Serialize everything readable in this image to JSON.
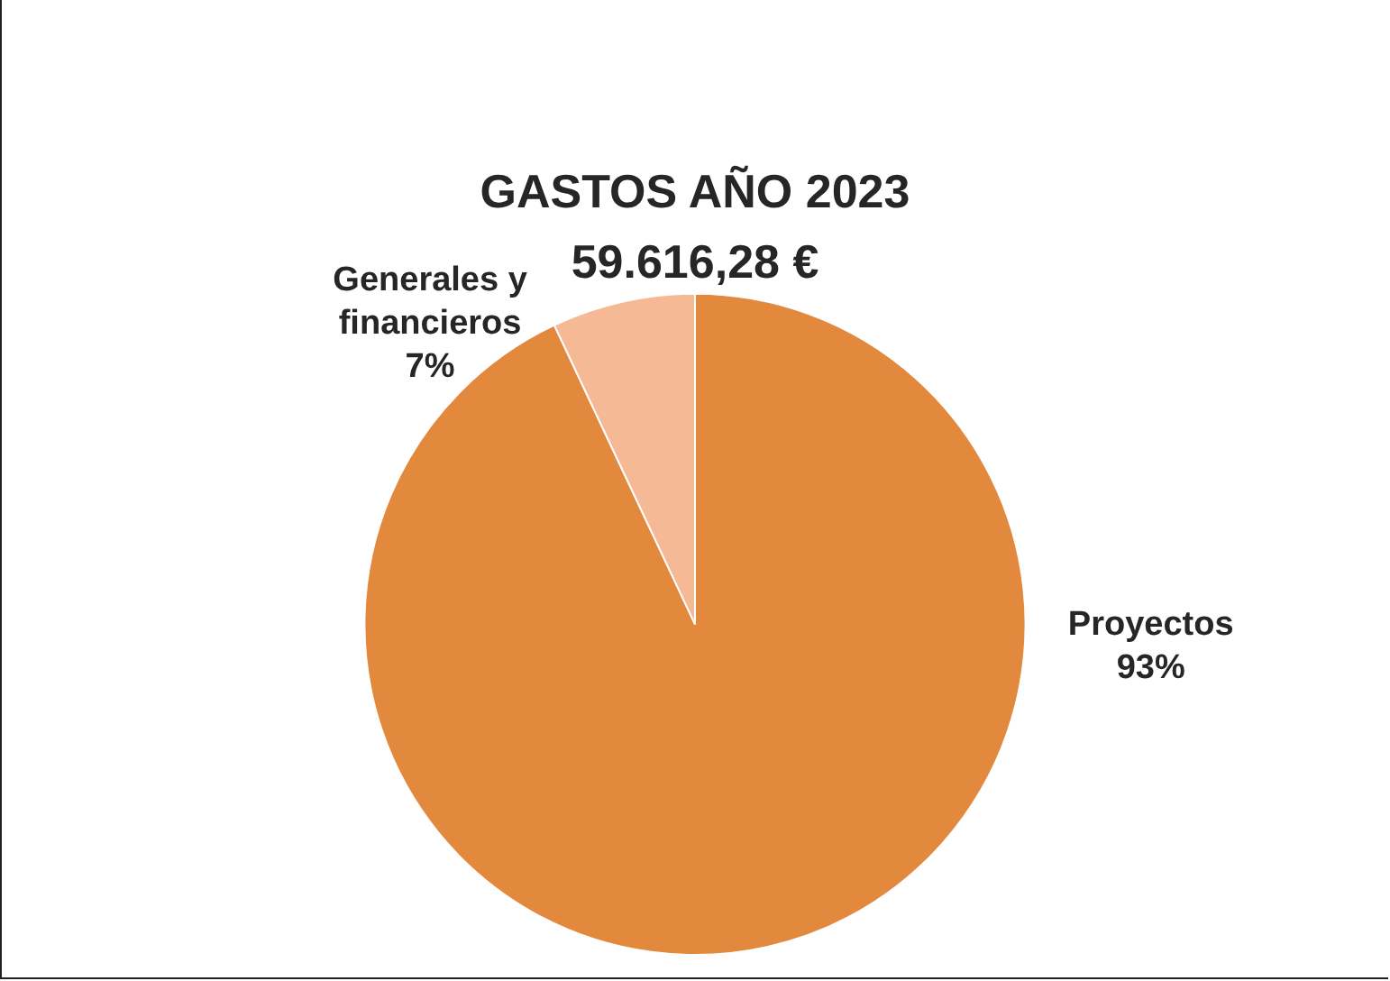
{
  "chart_data": {
    "type": "pie",
    "title": "GASTOS AÑO 2023",
    "subtitle": "59.616,28 €",
    "categories": [
      "Proyectos",
      "Generales y financieros"
    ],
    "values": [
      93,
      7
    ],
    "colors": [
      "#e2893e",
      "#f6b995"
    ],
    "value_labels": [
      "93%",
      "7%"
    ],
    "legend": false
  }
}
